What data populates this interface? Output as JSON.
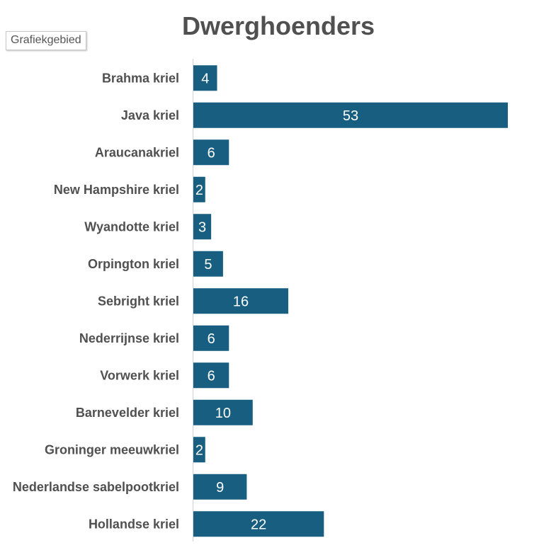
{
  "tooltip": "Grafiekgebied",
  "colors": {
    "bar": "#175e80",
    "text": "#505050",
    "label": "#ffffff",
    "axis": "#d0d0d0"
  },
  "chart_data": {
    "type": "bar",
    "orientation": "horizontal",
    "title": "Dwerghoenders",
    "categories": [
      "Brahma kriel",
      "Java kriel",
      "Araucanakriel",
      "New Hampshire kriel",
      "Wyandotte kriel",
      "Orpington kriel",
      "Sebright kriel",
      "Nederrijnse kriel",
      "Vorwerk kriel",
      "Barnevelder kriel",
      "Groninger meeuwkriel",
      "Nederlandse sabelpootkriel",
      "Hollandse kriel"
    ],
    "values": [
      4,
      53,
      6,
      2,
      3,
      5,
      16,
      6,
      6,
      10,
      2,
      9,
      22
    ],
    "data_labels": true,
    "xlim": [
      0,
      53
    ],
    "grid": false,
    "legend": "none"
  }
}
